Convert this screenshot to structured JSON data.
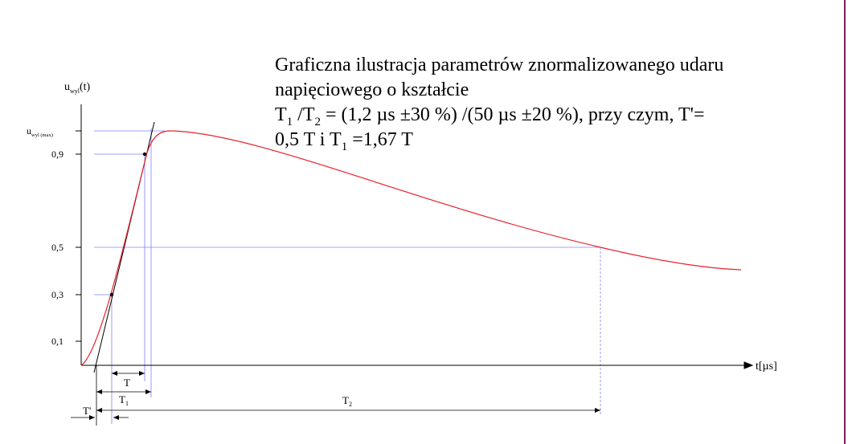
{
  "title": {
    "line1": "Graficzna ilustracja parametrów znormalizowanego udaru",
    "line2": "napięciowego o kształcie",
    "line3_parts": [
      "T",
      "1",
      " /T",
      "2",
      " = (1,2 µs ±30 %) /(50 µs ±20 %), przy czym, T'="
    ],
    "line4_parts": [
      "0,5 T  i T",
      "1",
      " =1,67 T"
    ]
  },
  "axes": {
    "y_label_main": "u",
    "y_label_sub": "wyl",
    "y_label_arg": "(t)",
    "y_max_label_main": "u",
    "y_max_label_sub": "wyl (max)",
    "x_label": "t[µs]",
    "y_ticks": [
      "0,9",
      "0,5",
      "0,3",
      "0,1"
    ]
  },
  "dimensions": {
    "T": "T",
    "T1_main": "T",
    "T1_sub": "1",
    "T2_main": "T",
    "T2_sub": "2",
    "Tprime": "T'"
  },
  "colors": {
    "curve": "#e8202a",
    "guides": "#8080ff",
    "axes": "#000000",
    "frame": "#7a1f5c"
  }
}
